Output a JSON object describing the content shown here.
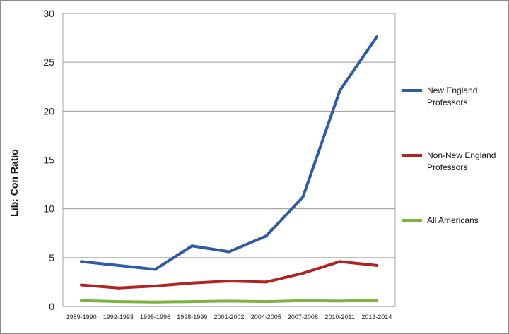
{
  "chart_data": {
    "type": "line",
    "title": "",
    "xlabel": "",
    "ylabel": "Lib: Con Ratio",
    "categories": [
      "1989-1990",
      "1992-1993",
      "1995-1996",
      "1998-1999",
      "2001-2002",
      "2004-2005",
      "2007-2008",
      "2010-2011",
      "2013-2014"
    ],
    "ylim": [
      0,
      30
    ],
    "yticks": [
      0,
      5,
      10,
      15,
      20,
      25,
      30
    ],
    "grid": "horizontal",
    "legend_position": "right",
    "series": [
      {
        "name": "New England Professors",
        "legend_lines": [
          "New England",
          "Professors"
        ],
        "color": "#2e5aa8",
        "values": [
          4.6,
          4.2,
          3.8,
          6.2,
          5.6,
          7.2,
          11.2,
          22.1,
          27.6
        ]
      },
      {
        "name": "Non-New England Professors",
        "legend_lines": [
          "Non-New England",
          "Professors"
        ],
        "color": "#b22222",
        "values": [
          2.2,
          1.9,
          2.1,
          2.4,
          2.6,
          2.5,
          3.4,
          4.6,
          4.2
        ]
      },
      {
        "name": "All Americans",
        "legend_lines": [
          "All Americans"
        ],
        "color": "#7cb342",
        "values": [
          0.6,
          0.5,
          0.45,
          0.5,
          0.55,
          0.5,
          0.6,
          0.55,
          0.65
        ]
      }
    ]
  }
}
